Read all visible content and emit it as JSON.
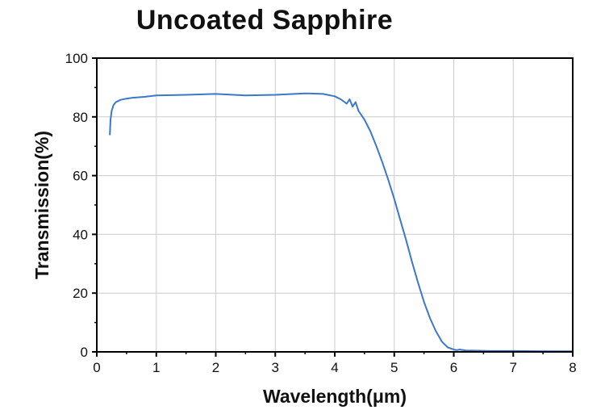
{
  "chart_data": {
    "type": "line",
    "title": "Uncoated Sapphire",
    "xlabel": "Wavelength(μm)",
    "ylabel": "Transmission(%)",
    "xlim": [
      0,
      8
    ],
    "ylim": [
      0,
      100
    ],
    "xticks": [
      0,
      1,
      2,
      3,
      4,
      5,
      6,
      7,
      8
    ],
    "yticks": [
      0,
      20,
      40,
      60,
      80,
      100
    ],
    "grid": true,
    "line_color": "#3a78c9",
    "series": [
      {
        "x": [
          0.22,
          0.23,
          0.25,
          0.28,
          0.32,
          0.4,
          0.5,
          0.6,
          0.8,
          1.0,
          1.5,
          2.0,
          2.5,
          3.0,
          3.5,
          3.8,
          4.0,
          4.1,
          4.2,
          4.25,
          4.3,
          4.35,
          4.4,
          4.5,
          4.6,
          4.7,
          4.8,
          4.9,
          5.0,
          5.1,
          5.2,
          5.3,
          5.4,
          5.5,
          5.6,
          5.7,
          5.8,
          5.9,
          6.0,
          6.05,
          6.1,
          6.2,
          6.4,
          6.6,
          7.0,
          7.5,
          8.0
        ],
        "y": [
          74,
          79,
          82,
          84,
          85,
          85.8,
          86.2,
          86.5,
          86.8,
          87.3,
          87.5,
          87.8,
          87.3,
          87.5,
          88.0,
          87.8,
          87.0,
          86.0,
          84.5,
          86.0,
          83.5,
          85.0,
          82.0,
          79.0,
          75.0,
          70.0,
          64.5,
          58.5,
          52.0,
          45.0,
          38.0,
          30.5,
          23.5,
          17.0,
          11.5,
          7.0,
          3.5,
          1.5,
          0.8,
          0.6,
          0.8,
          0.5,
          0.4,
          0.3,
          0.3,
          0.2,
          0.2
        ]
      }
    ]
  }
}
